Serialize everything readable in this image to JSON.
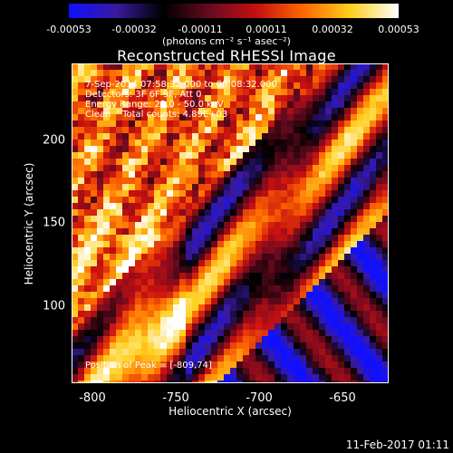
{
  "colorbar": {
    "ticks": [
      "-0.00053",
      "-0.00032",
      "-0.00011",
      "0.00011",
      "0.00032",
      "0.00053"
    ],
    "units": "(photons cm⁻² s⁻¹ asec⁻²)",
    "colors": [
      "#1010ff",
      "#3a1aa0",
      "#000000",
      "#6a0a20",
      "#c81010",
      "#ff6a00",
      "#ffd020",
      "#ffffff"
    ]
  },
  "title": "Reconstructed RHESSI Image",
  "annotations": {
    "line1": "7-Sep-2014 07:58:32.000 to 08:08:32.000",
    "line2": "Detectors: 3F 6F 9F, Att 0",
    "line3": "Energy Range: 25.0 - 50.0 keV",
    "line4": "Clean    Total counts: 4.89E+03",
    "peak": "Position of Peak = [-809,74]"
  },
  "xlabel": "Heliocentric X (arcsec)",
  "ylabel": "Heliocentric Y (arcsec)",
  "footer_date": "11-Feb-2017 01:11",
  "chart_data": {
    "type": "heatmap",
    "title": "Reconstructed RHESSI Image",
    "xlabel": "Heliocentric X (arcsec)",
    "ylabel": "Heliocentric Y (arcsec)",
    "xlim": [
      -815,
      -625
    ],
    "ylim": [
      55,
      246
    ],
    "xticks": [
      -800,
      -750,
      -700,
      -650
    ],
    "yticks": [
      100,
      150,
      200
    ],
    "colorbar_range": [
      -0.00053,
      0.00053
    ],
    "peak_position": [
      -809,
      74
    ]
  }
}
